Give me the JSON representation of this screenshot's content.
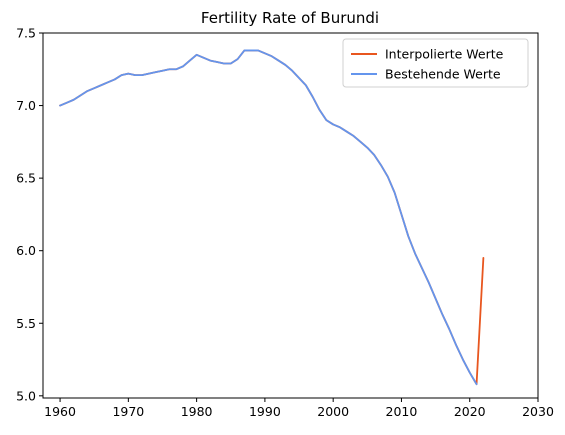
{
  "chart_data": {
    "type": "line",
    "title": "Fertility Rate of Burundi",
    "xlabel": "",
    "ylabel": "",
    "xlim": [
      1957.5,
      2030
    ],
    "ylim": [
      4.985,
      7.5
    ],
    "xticks": [
      1960,
      1970,
      1980,
      1990,
      2000,
      2010,
      2020,
      2030
    ],
    "xtick_labels": [
      "1960",
      "1970",
      "1980",
      "1990",
      "2000",
      "2010",
      "2020",
      "2030"
    ],
    "yticks": [
      5.0,
      5.5,
      6.0,
      6.5,
      7.0,
      7.5
    ],
    "ytick_labels": [
      "5.0",
      "5.5",
      "6.0",
      "6.5",
      "7.0",
      "7.5"
    ],
    "grid": false,
    "legend_position": "top-right",
    "series": [
      {
        "name": "Interpolierte Werte",
        "color": "#e8561f",
        "x": [
          1960,
          1961,
          1962,
          1963,
          1964,
          1965,
          1966,
          1967,
          1968,
          1969,
          1970,
          1971,
          1972,
          1973,
          1974,
          1975,
          1976,
          1977,
          1978,
          1979,
          1980,
          1981,
          1982,
          1983,
          1984,
          1985,
          1986,
          1987,
          1988,
          1989,
          1990,
          1991,
          1992,
          1993,
          1994,
          1995,
          1996,
          1997,
          1998,
          1999,
          2000,
          2001,
          2002,
          2003,
          2004,
          2005,
          2006,
          2007,
          2008,
          2009,
          2010,
          2011,
          2012,
          2013,
          2014,
          2015,
          2016,
          2017,
          2018,
          2019,
          2020,
          2021,
          2022
        ],
        "y": [
          7.0,
          7.02,
          7.04,
          7.07,
          7.1,
          7.12,
          7.14,
          7.16,
          7.18,
          7.21,
          7.22,
          7.21,
          7.21,
          7.22,
          7.23,
          7.24,
          7.25,
          7.25,
          7.27,
          7.31,
          7.35,
          7.33,
          7.31,
          7.3,
          7.29,
          7.29,
          7.32,
          7.38,
          7.38,
          7.38,
          7.36,
          7.34,
          7.31,
          7.28,
          7.24,
          7.19,
          7.14,
          7.06,
          6.97,
          6.9,
          6.87,
          6.85,
          6.82,
          6.79,
          6.75,
          6.71,
          6.66,
          6.59,
          6.51,
          6.4,
          6.25,
          6.1,
          5.98,
          5.88,
          5.78,
          5.67,
          5.56,
          5.46,
          5.35,
          5.25,
          5.16,
          5.08,
          5.95
        ]
      },
      {
        "name": "Bestehende Werte",
        "color": "#6495ed",
        "x": [
          1960,
          1961,
          1962,
          1963,
          1964,
          1965,
          1966,
          1967,
          1968,
          1969,
          1970,
          1971,
          1972,
          1973,
          1974,
          1975,
          1976,
          1977,
          1978,
          1979,
          1980,
          1981,
          1982,
          1983,
          1984,
          1985,
          1986,
          1987,
          1988,
          1989,
          1990,
          1991,
          1992,
          1993,
          1994,
          1995,
          1996,
          1997,
          1998,
          1999,
          2000,
          2001,
          2002,
          2003,
          2004,
          2005,
          2006,
          2007,
          2008,
          2009,
          2010,
          2011,
          2012,
          2013,
          2014,
          2015,
          2016,
          2017,
          2018,
          2019,
          2020,
          2021
        ],
        "y": [
          7.0,
          7.02,
          7.04,
          7.07,
          7.1,
          7.12,
          7.14,
          7.16,
          7.18,
          7.21,
          7.22,
          7.21,
          7.21,
          7.22,
          7.23,
          7.24,
          7.25,
          7.25,
          7.27,
          7.31,
          7.35,
          7.33,
          7.31,
          7.3,
          7.29,
          7.29,
          7.32,
          7.38,
          7.38,
          7.38,
          7.36,
          7.34,
          7.31,
          7.28,
          7.24,
          7.19,
          7.14,
          7.06,
          6.97,
          6.9,
          6.87,
          6.85,
          6.82,
          6.79,
          6.75,
          6.71,
          6.66,
          6.59,
          6.51,
          6.4,
          6.25,
          6.1,
          5.98,
          5.88,
          5.78,
          5.67,
          5.56,
          5.46,
          5.35,
          5.25,
          5.16,
          5.08
        ]
      }
    ]
  }
}
